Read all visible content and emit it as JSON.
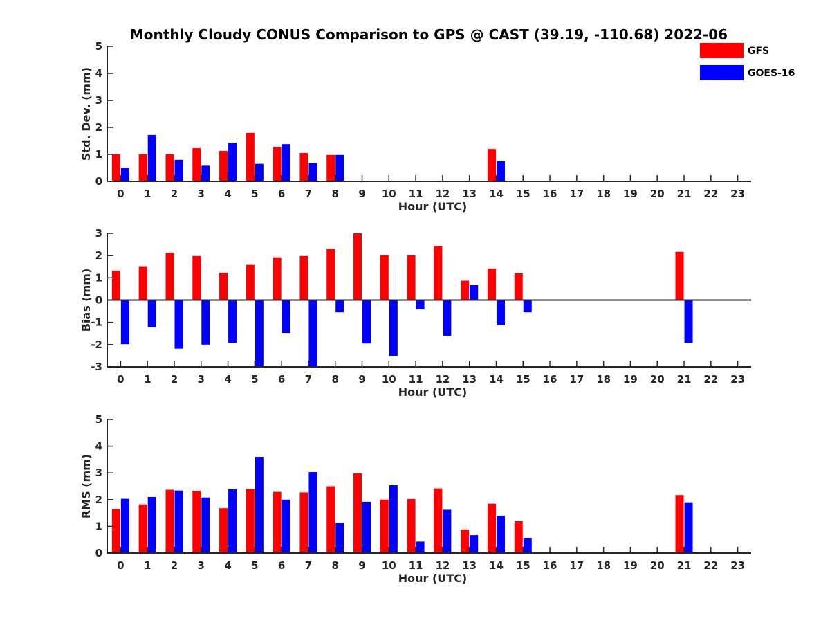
{
  "title": "Monthly Cloudy CONUS Comparison to GPS @ CAST (39.19, -110.68) 2022-06",
  "legend": {
    "placement": "top-right",
    "entries": [
      {
        "name": "GFS",
        "color": "#ff0000"
      },
      {
        "name": "GOES-16",
        "color": "#0000ff"
      }
    ]
  },
  "chart_data": [
    {
      "type": "bar",
      "ylabel": "Std. Dev. (mm)",
      "xlabel": "Hour (UTC)",
      "ylim": [
        0,
        5
      ],
      "yticks": [
        "0",
        "1",
        "2",
        "3",
        "4",
        "5"
      ],
      "categories": [
        "0",
        "1",
        "2",
        "3",
        "4",
        "5",
        "6",
        "7",
        "8",
        "9",
        "10",
        "11",
        "12",
        "13",
        "14",
        "15",
        "16",
        "17",
        "18",
        "19",
        "20",
        "21",
        "22",
        "23"
      ],
      "series": [
        {
          "name": "GFS",
          "color": "#ff0000",
          "values": [
            1.0,
            1.0,
            1.0,
            1.23,
            1.13,
            1.8,
            1.27,
            1.05,
            0.98,
            null,
            null,
            null,
            null,
            null,
            1.2,
            null,
            null,
            null,
            null,
            null,
            null,
            null,
            null,
            null
          ]
        },
        {
          "name": "GOES-16",
          "color": "#0000ff",
          "values": [
            0.5,
            1.72,
            0.8,
            0.58,
            1.43,
            0.65,
            1.38,
            0.68,
            0.98,
            null,
            null,
            null,
            null,
            null,
            0.77,
            null,
            null,
            null,
            null,
            null,
            null,
            null,
            null,
            null
          ]
        }
      ]
    },
    {
      "type": "bar",
      "ylabel": "Bias (mm)",
      "xlabel": "Hour (UTC)",
      "ylim": [
        -3,
        3
      ],
      "yticks": [
        "-3",
        "-2",
        "-1",
        "0",
        "1",
        "2",
        "3"
      ],
      "zero_line": true,
      "categories": [
        "0",
        "1",
        "2",
        "3",
        "4",
        "5",
        "6",
        "7",
        "8",
        "9",
        "10",
        "11",
        "12",
        "13",
        "14",
        "15",
        "16",
        "17",
        "18",
        "19",
        "20",
        "21",
        "22",
        "23"
      ],
      "series": [
        {
          "name": "GFS",
          "color": "#ff0000",
          "values": [
            1.32,
            1.52,
            2.13,
            1.98,
            1.23,
            1.58,
            1.92,
            1.98,
            2.3,
            3.0,
            2.02,
            2.02,
            2.42,
            0.87,
            1.42,
            1.2,
            null,
            null,
            null,
            null,
            null,
            2.17,
            null,
            null
          ]
        },
        {
          "name": "GOES-16",
          "color": "#0000ff",
          "values": [
            -1.98,
            -1.22,
            -2.18,
            -2.0,
            -1.92,
            -3.0,
            -1.48,
            -2.98,
            -0.55,
            -1.95,
            -2.52,
            -0.42,
            -1.6,
            0.67,
            -1.12,
            -0.55,
            null,
            null,
            null,
            null,
            null,
            -1.92,
            null,
            null
          ]
        }
      ]
    },
    {
      "type": "bar",
      "ylabel": "RMS (mm)",
      "xlabel": "Hour (UTC)",
      "ylim": [
        0,
        5
      ],
      "yticks": [
        "0",
        "1",
        "2",
        "3",
        "4",
        "5"
      ],
      "categories": [
        "0",
        "1",
        "2",
        "3",
        "4",
        "5",
        "6",
        "7",
        "8",
        "9",
        "10",
        "11",
        "12",
        "13",
        "14",
        "15",
        "16",
        "17",
        "18",
        "19",
        "20",
        "21",
        "22",
        "23"
      ],
      "series": [
        {
          "name": "GFS",
          "color": "#ff0000",
          "values": [
            1.65,
            1.82,
            2.37,
            2.33,
            1.68,
            2.4,
            2.29,
            2.27,
            2.5,
            2.99,
            2.0,
            2.02,
            2.42,
            0.87,
            1.85,
            1.2,
            null,
            null,
            null,
            null,
            null,
            2.17,
            null,
            null
          ]
        },
        {
          "name": "GOES-16",
          "color": "#0000ff",
          "values": [
            2.03,
            2.1,
            2.34,
            2.08,
            2.39,
            3.6,
            2.0,
            3.03,
            1.13,
            1.92,
            2.54,
            0.43,
            1.62,
            0.67,
            1.4,
            0.57,
            null,
            null,
            null,
            null,
            null,
            1.9,
            null,
            null
          ]
        }
      ]
    }
  ]
}
